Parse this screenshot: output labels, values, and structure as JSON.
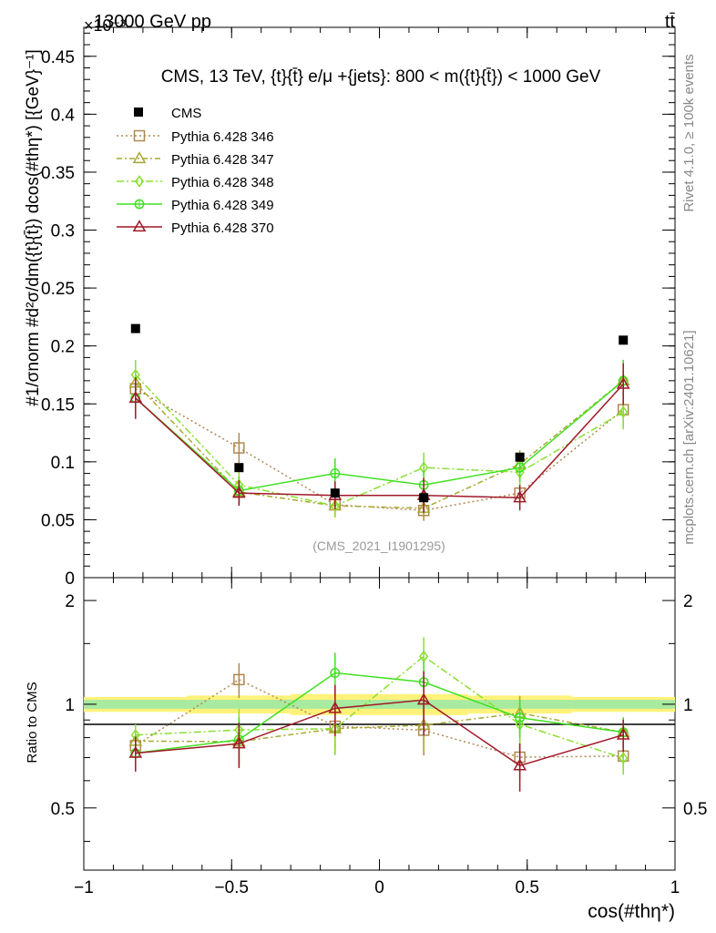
{
  "header": {
    "energy_label": "13000 GeV pp",
    "process_label": "tt̄",
    "exponent_label": "×10⁻³",
    "rivet_label": "Rivet 4.1.0, ≥ 100k events",
    "mcplots_label": "mcplots.cern.ch [arXiv:2401.10621]",
    "analysis_label": "(CMS_2021_I1901295)"
  },
  "chart_data": {
    "type": "line",
    "title": "CMS, 13 TeV, {t}{t̄} e/μ +{jets}: 800 < m({t}{t̄}) < 1000 GeV",
    "xlabel": "cos(#thη*)",
    "ylabel_upper": "#1/σnorm #d²σ/dm({t}{t̄}) dcos(#thη*) [{GeV}⁻¹]",
    "ylabel_lower": "Ratio to CMS",
    "xlim": [
      -1.0,
      1.0
    ],
    "ylim_upper": [
      0.0,
      0.475
    ],
    "ylim_lower": [
      0.33,
      2.33
    ],
    "ylog_lower": true,
    "x_ticks": [
      "−1",
      "−0.5",
      "0",
      "0.5",
      "1"
    ],
    "x_tick_values": [
      -1.0,
      -0.5,
      0.0,
      0.5,
      1.0
    ],
    "y_ticks_upper": [
      "0",
      "0.05",
      "0.1",
      "0.15",
      "0.2",
      "0.25",
      "0.3",
      "0.35",
      "0.4",
      "0.45"
    ],
    "y_tick_values_upper": [
      0,
      0.05,
      0.1,
      0.15,
      0.2,
      0.25,
      0.3,
      0.35,
      0.4,
      0.45
    ],
    "y_ticks_lower": [
      "0.5",
      "1",
      "2"
    ],
    "y_tick_values_lower": [
      0.5,
      1,
      2
    ],
    "x": [
      -0.825,
      -0.475,
      -0.15,
      0.15,
      0.475,
      0.825
    ],
    "bin_edges": [
      -1.0,
      -0.65,
      -0.3,
      0.0,
      0.3,
      0.65,
      1.0
    ],
    "data": {
      "name": "CMS",
      "values": [
        0.215,
        0.095,
        0.073,
        0.069,
        0.104,
        0.205
      ],
      "band_inner": [
        0.03,
        0.03,
        0.03,
        0.03,
        0.03,
        0.03
      ],
      "band_outer": [
        0.05,
        0.06,
        0.07,
        0.07,
        0.06,
        0.05
      ]
    },
    "series": [
      {
        "name": "Pythia 6.428 346",
        "color": "#b08850",
        "marker": "square",
        "dash": "2,3",
        "values": [
          0.163,
          0.112,
          0.063,
          0.058,
          0.073,
          0.145
        ],
        "errors": [
          0.01,
          0.013,
          0.009,
          0.009,
          0.01,
          0.015
        ]
      },
      {
        "name": "Pythia 6.428 347",
        "color": "#a8a830",
        "marker": "triangle",
        "dash": "6,3,2,3",
        "values": [
          0.168,
          0.074,
          0.062,
          0.06,
          0.098,
          0.17
        ],
        "errors": [
          0.012,
          0.011,
          0.01,
          0.01,
          0.012,
          0.017
        ]
      },
      {
        "name": "Pythia 6.428 348",
        "color": "#88e030",
        "marker": "diamond",
        "dash": "8,3,2,3",
        "values": [
          0.175,
          0.08,
          0.062,
          0.095,
          0.091,
          0.143
        ],
        "errors": [
          0.013,
          0.012,
          0.01,
          0.013,
          0.012,
          0.015
        ]
      },
      {
        "name": "Pythia 6.428 349",
        "color": "#40e020",
        "marker": "circle",
        "dash": "",
        "values": [
          0.155,
          0.075,
          0.09,
          0.08,
          0.095,
          0.17
        ],
        "errors": [
          0.014,
          0.012,
          0.013,
          0.012,
          0.012,
          0.018
        ]
      },
      {
        "name": "Pythia 6.428 370",
        "color": "#a01828",
        "marker": "triangle",
        "dash": "",
        "values": [
          0.155,
          0.073,
          0.071,
          0.071,
          0.069,
          0.167
        ],
        "errors": [
          0.018,
          0.011,
          0.012,
          0.015,
          0.011,
          0.018
        ]
      }
    ]
  }
}
